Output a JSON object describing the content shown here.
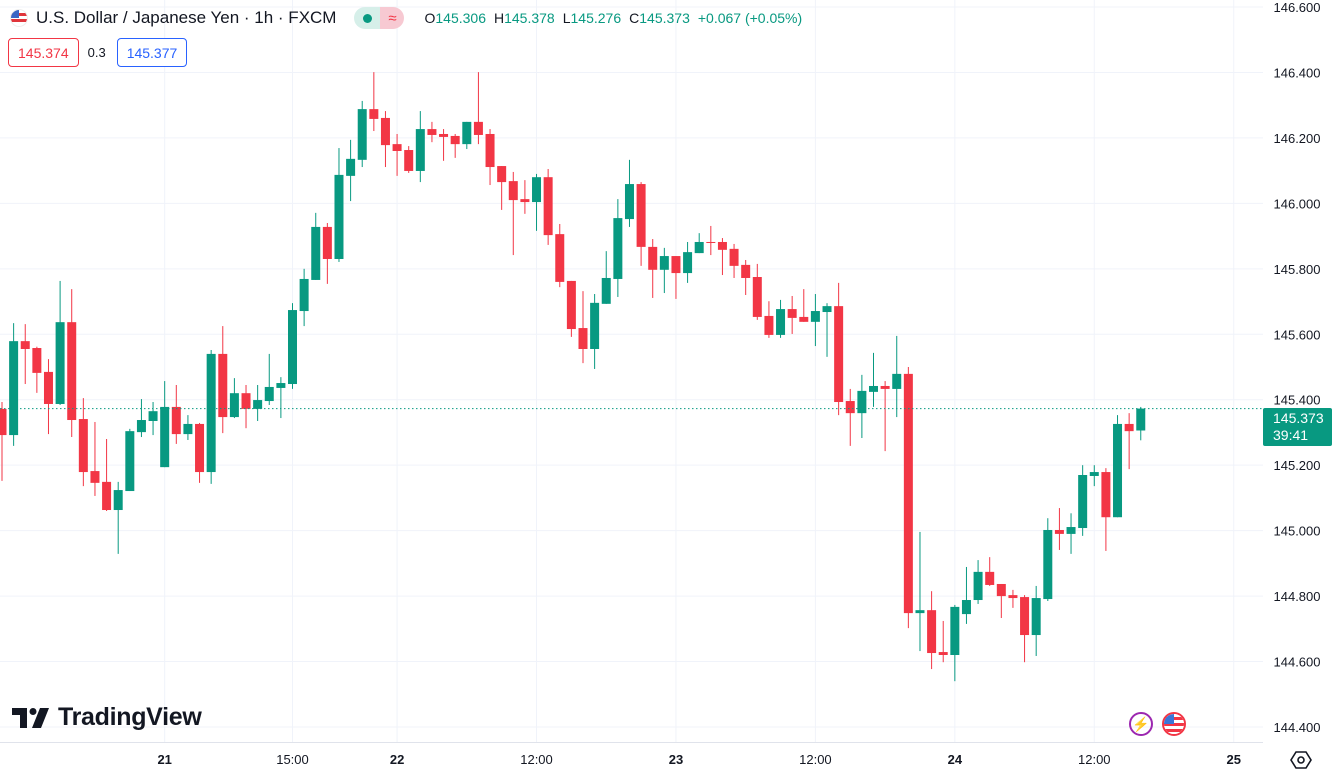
{
  "header": {
    "flag_icon": "us-jp-flag-icon",
    "title": "U.S. Dollar / Japanese Yen · 1h · FXCM",
    "status_icon": "market-open-dot-icon",
    "status_symbol": "≈",
    "ohlc": {
      "o_label": "O",
      "o": "145.306",
      "h_label": "H",
      "h": "145.378",
      "l_label": "L",
      "l": "145.276",
      "c_label": "C",
      "c": "145.373",
      "change": "+0.067 (+0.05%)"
    }
  },
  "trade": {
    "sell": "145.374",
    "spread": "0.3",
    "buy": "145.377"
  },
  "logo": "TradingView",
  "price_tag": {
    "price": "145.373",
    "countdown": "39:41"
  },
  "colors": {
    "up": "#089981",
    "down": "#f23645",
    "sell": "#f23645",
    "buy": "#2962ff",
    "grid": "#f0f3fa"
  },
  "chart_data": {
    "type": "candlestick",
    "symbol": "USDJPY",
    "interval": "1h",
    "ylim": [
      144.4,
      146.6
    ],
    "yticks": [
      "146.600",
      "146.400",
      "146.200",
      "146.000",
      "145.800",
      "145.600",
      "145.400",
      "145.200",
      "145.000",
      "144.800",
      "144.600",
      "144.400"
    ],
    "xticks": [
      {
        "label": "21",
        "index": 14
      },
      {
        "label": "15:00",
        "index": 25
      },
      {
        "label": "22",
        "index": 34
      },
      {
        "label": "12:00",
        "index": 46
      },
      {
        "label": "23",
        "index": 58
      },
      {
        "label": "12:00",
        "index": 70
      },
      {
        "label": "24",
        "index": 82
      },
      {
        "label": "12:00",
        "index": 94
      },
      {
        "label": "25",
        "index": 106
      }
    ],
    "last_price": 145.373,
    "ohlc": [
      [
        145.372,
        145.393,
        145.152,
        145.292
      ],
      [
        145.292,
        145.634,
        145.259,
        145.579
      ],
      [
        145.579,
        145.631,
        145.448,
        145.555
      ],
      [
        145.558,
        145.562,
        145.421,
        145.482
      ],
      [
        145.485,
        145.524,
        145.295,
        145.387
      ],
      [
        145.387,
        145.763,
        145.384,
        145.637
      ],
      [
        145.637,
        145.738,
        145.286,
        145.338
      ],
      [
        145.341,
        145.405,
        145.136,
        145.179
      ],
      [
        145.182,
        145.332,
        145.106,
        145.146
      ],
      [
        145.149,
        145.28,
        145.06,
        145.063
      ],
      [
        145.063,
        145.149,
        144.929,
        145.124
      ],
      [
        145.121,
        145.311,
        145.121,
        145.304
      ],
      [
        145.301,
        145.402,
        145.286,
        145.338
      ],
      [
        145.335,
        145.393,
        145.292,
        145.365
      ],
      [
        145.194,
        145.457,
        145.194,
        145.378
      ],
      [
        145.378,
        145.445,
        145.265,
        145.295
      ],
      [
        145.295,
        145.353,
        145.277,
        145.326
      ],
      [
        145.326,
        145.329,
        145.146,
        145.179
      ],
      [
        145.179,
        145.552,
        145.143,
        145.54
      ],
      [
        145.54,
        145.625,
        145.298,
        145.347
      ],
      [
        145.347,
        145.466,
        145.344,
        145.42
      ],
      [
        145.42,
        145.445,
        145.313,
        145.372
      ],
      [
        145.372,
        145.445,
        145.335,
        145.399
      ],
      [
        145.396,
        145.54,
        145.384,
        145.439
      ],
      [
        145.436,
        145.469,
        145.344,
        145.451
      ],
      [
        145.448,
        145.695,
        145.433,
        145.674
      ],
      [
        145.671,
        145.8,
        145.625,
        145.769
      ],
      [
        145.766,
        145.971,
        145.766,
        145.928
      ],
      [
        145.928,
        145.94,
        145.754,
        145.83
      ],
      [
        145.83,
        146.169,
        145.821,
        146.087
      ],
      [
        146.084,
        146.194,
        146.007,
        146.136
      ],
      [
        146.133,
        146.313,
        146.111,
        146.288
      ],
      [
        146.288,
        146.401,
        146.221,
        146.258
      ],
      [
        146.261,
        146.282,
        146.111,
        146.178
      ],
      [
        146.181,
        146.212,
        146.084,
        146.16
      ],
      [
        146.163,
        146.175,
        146.093,
        146.099
      ],
      [
        146.099,
        146.282,
        146.065,
        146.227
      ],
      [
        146.227,
        146.249,
        146.187,
        146.209
      ],
      [
        146.212,
        146.227,
        146.13,
        146.203
      ],
      [
        146.206,
        146.212,
        146.139,
        146.181
      ],
      [
        146.181,
        146.249,
        146.166,
        146.249
      ],
      [
        146.249,
        146.401,
        146.181,
        146.209
      ],
      [
        146.212,
        146.227,
        146.056,
        146.111
      ],
      [
        146.114,
        146.114,
        145.98,
        146.065
      ],
      [
        146.068,
        146.096,
        145.842,
        146.01
      ],
      [
        146.013,
        146.071,
        145.968,
        146.004
      ],
      [
        146.004,
        146.09,
        145.916,
        146.08
      ],
      [
        146.08,
        146.105,
        145.873,
        145.903
      ],
      [
        145.906,
        145.937,
        145.744,
        145.76
      ],
      [
        145.763,
        145.763,
        145.592,
        145.616
      ],
      [
        145.619,
        145.732,
        145.512,
        145.555
      ],
      [
        145.555,
        145.723,
        145.494,
        145.696
      ],
      [
        145.693,
        145.854,
        145.693,
        145.772
      ],
      [
        145.769,
        146.013,
        145.714,
        145.955
      ],
      [
        145.952,
        146.133,
        145.928,
        146.059
      ],
      [
        146.059,
        146.065,
        145.809,
        145.867
      ],
      [
        145.867,
        145.891,
        145.711,
        145.797
      ],
      [
        145.797,
        145.864,
        145.726,
        145.839
      ],
      [
        145.839,
        145.839,
        145.708,
        145.787
      ],
      [
        145.787,
        145.882,
        145.757,
        145.851
      ],
      [
        145.848,
        145.909,
        145.848,
        145.882
      ],
      [
        145.882,
        145.931,
        145.842,
        145.879
      ],
      [
        145.882,
        145.894,
        145.781,
        145.858
      ],
      [
        145.861,
        145.876,
        145.772,
        145.809
      ],
      [
        145.812,
        145.827,
        145.72,
        145.772
      ],
      [
        145.775,
        145.815,
        145.644,
        145.653
      ],
      [
        145.656,
        145.701,
        145.589,
        145.598
      ],
      [
        145.598,
        145.705,
        145.589,
        145.677
      ],
      [
        145.677,
        145.717,
        145.601,
        145.65
      ],
      [
        145.653,
        145.738,
        145.638,
        145.638
      ],
      [
        145.638,
        145.723,
        145.564,
        145.671
      ],
      [
        145.668,
        145.695,
        145.531,
        145.686
      ],
      [
        145.686,
        145.757,
        145.353,
        145.393
      ],
      [
        145.396,
        145.433,
        145.259,
        145.359
      ],
      [
        145.359,
        145.476,
        145.283,
        145.427
      ],
      [
        145.424,
        145.543,
        145.378,
        145.442
      ],
      [
        145.442,
        145.457,
        145.243,
        145.433
      ],
      [
        145.433,
        145.595,
        145.347,
        145.479
      ],
      [
        145.479,
        145.5,
        144.702,
        144.748
      ],
      [
        144.748,
        144.996,
        144.632,
        144.757
      ],
      [
        144.757,
        144.815,
        144.577,
        144.626
      ],
      [
        144.629,
        144.724,
        144.598,
        144.62
      ],
      [
        144.62,
        144.773,
        144.54,
        144.767
      ],
      [
        144.745,
        144.889,
        144.715,
        144.788
      ],
      [
        144.788,
        144.91,
        144.776,
        144.874
      ],
      [
        144.874,
        144.919,
        144.831,
        144.834
      ],
      [
        144.837,
        144.837,
        144.733,
        144.8
      ],
      [
        144.803,
        144.819,
        144.764,
        144.794
      ],
      [
        144.797,
        144.803,
        144.598,
        144.681
      ],
      [
        144.681,
        144.831,
        144.617,
        144.794
      ],
      [
        144.791,
        145.038,
        144.785,
        145.002
      ],
      [
        145.002,
        145.069,
        144.941,
        144.99
      ],
      [
        144.99,
        145.053,
        144.929,
        145.011
      ],
      [
        145.008,
        145.2,
        144.984,
        145.17
      ],
      [
        145.167,
        145.2,
        145.136,
        145.179
      ],
      [
        145.179,
        145.191,
        144.938,
        145.041
      ],
      [
        145.041,
        145.353,
        145.041,
        145.326
      ],
      [
        145.326,
        145.359,
        145.188,
        145.304
      ],
      [
        145.306,
        145.378,
        145.276,
        145.373
      ]
    ]
  }
}
